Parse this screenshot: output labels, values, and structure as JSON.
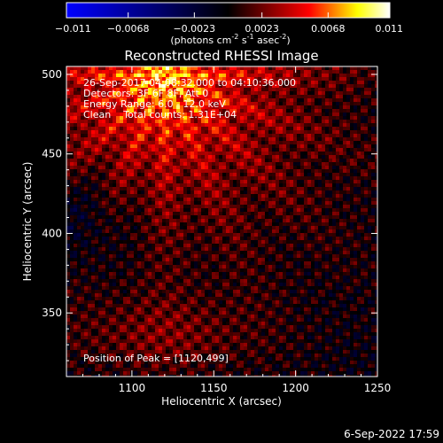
{
  "chart_data": {
    "type": "heatmap",
    "title": "Reconstructed RHESSI Image",
    "xlabel": "Heliocentric X (arcsec)",
    "ylabel": "Heliocentric Y (arcsec)",
    "xlim": [
      1060,
      1250
    ],
    "ylim": [
      310,
      505
    ],
    "x_ticks": [
      1100,
      1150,
      1200,
      1250
    ],
    "y_ticks": [
      350,
      400,
      450,
      500
    ],
    "grid": false,
    "colorbar": {
      "orientation": "horizontal",
      "placement": "top",
      "range": [
        -0.011,
        0.011
      ],
      "tick_labels": [
        "-0.011",
        "-0.0068",
        "-0.0023",
        "0.0023",
        "0.0068",
        "0.011"
      ],
      "units_label": {
        "prefix": "(photons cm",
        "sup1": "-2",
        "mid1": " s",
        "sup2": "-1",
        "mid2": " asec",
        "sup3": "-2",
        "suffix": ")"
      },
      "colors": [
        "#0000ff",
        "#000000",
        "#ff0000",
        "#ffff00",
        "#ffffff"
      ]
    },
    "annotations": [
      "26-Sep-2017 04:08:32.000 to 04:10:36.000",
      "Detectors: 3F 6F 8F, Att 0",
      "Energy Range: 6.0 - 12.0 keV",
      "Clean    Total counts: 1.31E+04"
    ],
    "peak_label": "Position of Peak = [1120,499]",
    "peak": [
      1120,
      499
    ],
    "footer_date": "6-Sep-2022 17:59"
  }
}
